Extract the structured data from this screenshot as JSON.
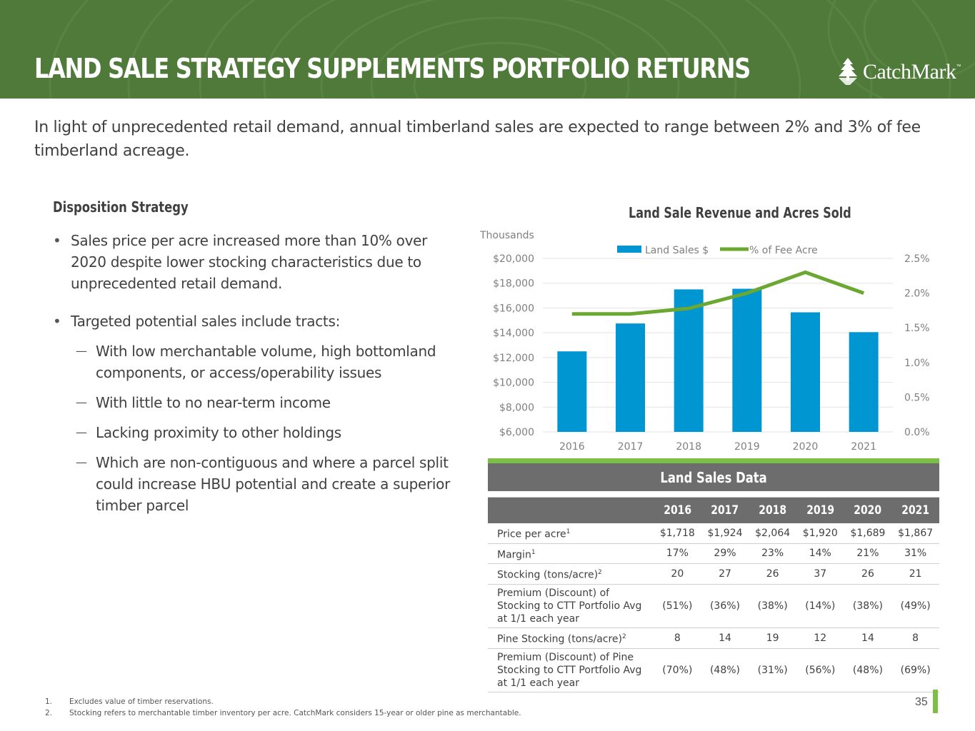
{
  "header": {
    "title": "LAND SALE STRATEGY SUPPLEMENTS PORTFOLIO RETURNS",
    "logo_text": "CatchMark",
    "logo_tm": "™"
  },
  "intro": "In light of unprecedented retail demand, annual timberland sales are expected to range between 2% and 3% of fee timberland acreage.",
  "disposition": {
    "title": "Disposition Strategy",
    "bullet_1": "Sales price per acre increased more than 10% over 2020 despite lower stocking characteristics due to unprecedented retail demand.",
    "bullet_2": "Targeted potential sales include tracts:",
    "sub_1": "With low merchantable volume, high bottomland components, or access/operability issues",
    "sub_2": "With little to no near-term income",
    "sub_3": "Lacking proximity to other holdings",
    "sub_4": "Which are non-contiguous and where a parcel split could increase HBU potential and create a superior timber parcel"
  },
  "chart_data": {
    "type": "bar",
    "title": "Land Sale Revenue and Acres Sold",
    "unit_label": "Thousands",
    "categories": [
      "2016",
      "2017",
      "2018",
      "2019",
      "2020",
      "2021"
    ],
    "series": [
      {
        "name": "Land Sales $",
        "type": "bar",
        "axis": "left",
        "color": "#0096d1",
        "values": [
          12500,
          14750,
          17500,
          17550,
          15650,
          14050
        ]
      },
      {
        "name": "% of Fee Acre",
        "type": "line",
        "axis": "right",
        "color": "#6aa832",
        "values": [
          1.7,
          1.7,
          1.78,
          2.0,
          2.3,
          2.0
        ]
      }
    ],
    "ylim": [
      6000,
      20000
    ],
    "y_ticks": [
      "$6,000",
      "$8,000",
      "$10,000",
      "$12,000",
      "$14,000",
      "$16,000",
      "$18,000",
      "$20,000"
    ],
    "y2lim": [
      0,
      2.5
    ],
    "y2_ticks": [
      "0.0%",
      "0.5%",
      "1.0%",
      "1.5%",
      "2.0%",
      "2.5%"
    ],
    "legend": "top-center"
  },
  "table": {
    "title": "Land Sales Data",
    "years": [
      "2016",
      "2017",
      "2018",
      "2019",
      "2020",
      "2021"
    ],
    "rows": [
      {
        "label": "Price per acre",
        "sup": "1",
        "values": [
          "$1,718",
          "$1,924",
          "$2,064",
          "$1,920",
          "$1,689",
          "$1,867"
        ]
      },
      {
        "label": "Margin",
        "sup": "1",
        "values": [
          "17%",
          "29%",
          "23%",
          "14%",
          "21%",
          "31%"
        ]
      },
      {
        "label": "Stocking (tons/acre)",
        "sup": "2",
        "values": [
          "20",
          "27",
          "26",
          "37",
          "26",
          "21"
        ]
      },
      {
        "label": "Premium (Discount) of Stocking to CTT Portfolio Avg at 1/1 each year",
        "sup": "",
        "values": [
          "(51%)",
          "(36%)",
          "(38%)",
          "(14%)",
          "(38%)",
          "(49%)"
        ]
      },
      {
        "label": "Pine Stocking (tons/acre)",
        "sup": "2",
        "values": [
          "8",
          "14",
          "19",
          "12",
          "14",
          "8"
        ]
      },
      {
        "label": "Premium (Discount) of Pine Stocking to CTT Portfolio Avg at 1/1 each year",
        "sup": "",
        "values": [
          "(70%)",
          "(48%)",
          "(31%)",
          "(56%)",
          "(48%)",
          "(69%)"
        ]
      }
    ]
  },
  "footnotes": [
    {
      "num": "1.",
      "text": "Excludes value of timber reservations."
    },
    {
      "num": "2.",
      "text": "Stocking refers to merchantable timber inventory per acre. CatchMark considers 15-year or older pine as merchantable."
    }
  ],
  "page_number": "35",
  "colors": {
    "banner": "#4f7a3a",
    "accent_green": "#7bbf44",
    "bar_blue": "#0096d1",
    "table_header": "#6d6d6d"
  }
}
